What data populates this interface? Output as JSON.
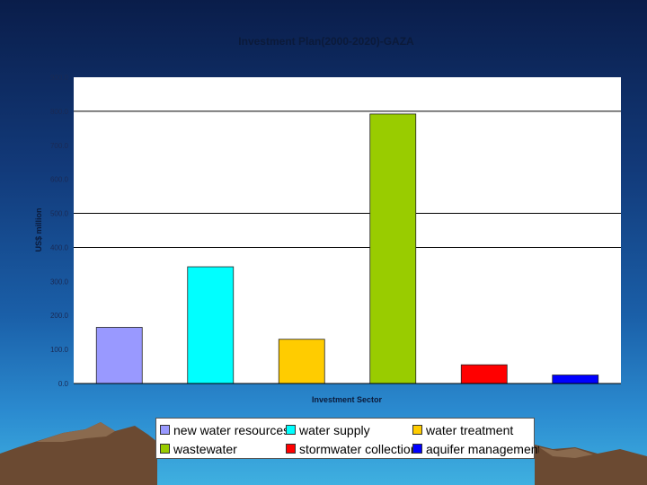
{
  "chart_data": {
    "type": "bar",
    "title": "Investment Plan(2000-2020)-GAZA",
    "xlabel": "Investment Sector",
    "ylabel": "US$ million",
    "ylim": [
      0,
      900
    ],
    "yticks": [
      "0.0",
      "100.0",
      "200.0",
      "300.0",
      "400.0",
      "500.0",
      "600.0",
      "700.0",
      "800.0",
      "900.0"
    ],
    "ytick_values": [
      0,
      100,
      200,
      300,
      400,
      500,
      600,
      700,
      800,
      900
    ],
    "categories": [
      "new water resources",
      "water supply",
      "water treatment",
      "wastewater",
      "stormwater collection",
      "aquifer management"
    ],
    "values": [
      165,
      343,
      130,
      792,
      55,
      25
    ],
    "colors": [
      "#9999ff",
      "#00ffff",
      "#ffcc00",
      "#99cc00",
      "#ff0000",
      "#0000ff"
    ],
    "gridlines": [
      400,
      500,
      800
    ],
    "legend": "bottom"
  }
}
